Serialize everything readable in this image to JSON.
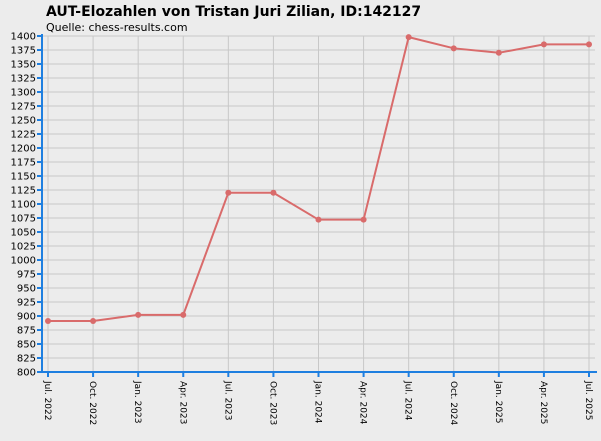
{
  "chart_data": {
    "type": "line",
    "title": "AUT-Elozahlen von Tristan Juri Zilian, ID:142127",
    "subtitle": "Quelle: chess-results.com",
    "categories": [
      "Jul. 2022",
      "Oct. 2022",
      "Jan. 2023",
      "Apr. 2023",
      "Jul. 2023",
      "Oct. 2023",
      "Jan. 2024",
      "Apr. 2024",
      "Jul. 2024",
      "Oct. 2024",
      "Jan. 2025",
      "Apr. 2025",
      "Jul. 2025"
    ],
    "series": [
      {
        "name": "Elo",
        "color": "#d96b6b",
        "values": [
          891,
          891,
          902,
          902,
          1120,
          1120,
          1072,
          1072,
          1398,
          1378,
          1370,
          1385,
          1385
        ]
      }
    ],
    "ylim": [
      800,
      1400
    ],
    "yticks": [
      800,
      825,
      850,
      875,
      900,
      925,
      950,
      975,
      1000,
      1025,
      1050,
      1075,
      1100,
      1125,
      1150,
      1175,
      1200,
      1225,
      1250,
      1275,
      1300,
      1325,
      1350,
      1375,
      1400
    ],
    "grid": true
  }
}
